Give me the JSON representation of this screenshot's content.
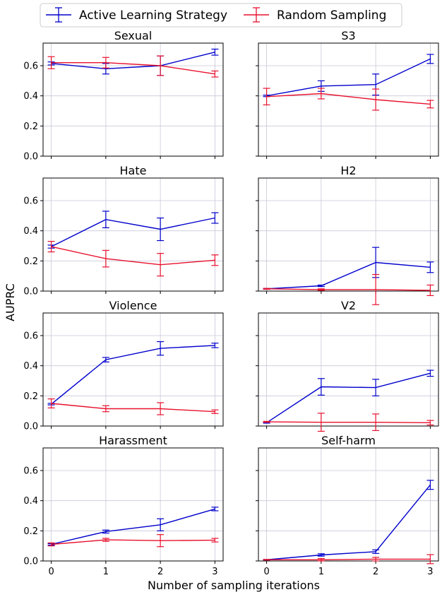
{
  "colors": {
    "active": "#0000cc",
    "random": "#e8112d",
    "grid": "#c8c8d8"
  },
  "legend": {
    "items": [
      {
        "label": "Active Learning Strategy",
        "color": "#0000cc"
      },
      {
        "label": "Random Sampling",
        "color": "#e8112d"
      }
    ]
  },
  "axes": {
    "xlabel": "Number of sampling iterations",
    "ylabel": "AUPRC",
    "x_ticks": [
      "0",
      "1",
      "2",
      "3"
    ],
    "y_ticks": [
      "0.0",
      "0.2",
      "0.4",
      "0.6"
    ]
  },
  "chart_data": [
    {
      "type": "line",
      "title": "Sexual",
      "x": [
        0,
        1,
        2,
        3
      ],
      "xlim": [
        -0.15,
        3.15
      ],
      "ylim": [
        0,
        0.75
      ],
      "series": [
        {
          "name": "Active Learning Strategy",
          "values": [
            0.615,
            0.58,
            0.6,
            0.69
          ],
          "errors": [
            0.01,
            0.035,
            0.065,
            0.02
          ]
        },
        {
          "name": "Random Sampling",
          "values": [
            0.62,
            0.62,
            0.6,
            0.545
          ],
          "errors": [
            0.04,
            0.035,
            0.065,
            0.02
          ]
        }
      ]
    },
    {
      "type": "line",
      "title": "S3",
      "x": [
        0,
        1,
        2,
        3
      ],
      "xlim": [
        -0.15,
        3.15
      ],
      "ylim": [
        0,
        0.75
      ],
      "series": [
        {
          "name": "Active Learning Strategy",
          "values": [
            0.4,
            0.465,
            0.475,
            0.645
          ],
          "errors": [
            0.005,
            0.035,
            0.07,
            0.03
          ]
        },
        {
          "name": "Random Sampling",
          "values": [
            0.395,
            0.415,
            0.375,
            0.345
          ],
          "errors": [
            0.055,
            0.035,
            0.07,
            0.025
          ]
        }
      ]
    },
    {
      "type": "line",
      "title": "Hate",
      "x": [
        0,
        1,
        2,
        3
      ],
      "xlim": [
        -0.15,
        3.15
      ],
      "ylim": [
        0,
        0.75
      ],
      "series": [
        {
          "name": "Active Learning Strategy",
          "values": [
            0.295,
            0.475,
            0.41,
            0.485
          ],
          "errors": [
            0.01,
            0.055,
            0.075,
            0.035
          ]
        },
        {
          "name": "Random Sampling",
          "values": [
            0.295,
            0.215,
            0.175,
            0.205
          ],
          "errors": [
            0.035,
            0.055,
            0.075,
            0.035
          ]
        }
      ]
    },
    {
      "type": "line",
      "title": "H2",
      "x": [
        0,
        1,
        2,
        3
      ],
      "xlim": [
        -0.15,
        3.15
      ],
      "ylim": [
        0,
        0.75
      ],
      "series": [
        {
          "name": "Active Learning Strategy",
          "values": [
            0.015,
            0.035,
            0.19,
            0.158
          ],
          "errors": [
            0.003,
            0.005,
            0.1,
            0.035
          ]
        },
        {
          "name": "Random Sampling",
          "values": [
            0.015,
            0.01,
            0.01,
            0.005
          ],
          "errors": [
            0.003,
            0.005,
            0.1,
            0.035
          ]
        }
      ]
    },
    {
      "type": "line",
      "title": "Violence",
      "x": [
        0,
        1,
        2,
        3
      ],
      "xlim": [
        -0.15,
        3.15
      ],
      "ylim": [
        0,
        0.75
      ],
      "series": [
        {
          "name": "Active Learning Strategy",
          "values": [
            0.145,
            0.44,
            0.515,
            0.535
          ],
          "errors": [
            0.005,
            0.015,
            0.045,
            0.015
          ]
        },
        {
          "name": "Random Sampling",
          "values": [
            0.15,
            0.115,
            0.115,
            0.095
          ],
          "errors": [
            0.03,
            0.02,
            0.04,
            0.012
          ]
        }
      ]
    },
    {
      "type": "line",
      "title": "V2",
      "x": [
        0,
        1,
        2,
        3
      ],
      "xlim": [
        -0.15,
        3.15
      ],
      "ylim": [
        0,
        0.75
      ],
      "series": [
        {
          "name": "Active Learning Strategy",
          "values": [
            0.022,
            0.26,
            0.255,
            0.35
          ],
          "errors": [
            0.003,
            0.055,
            0.055,
            0.02
          ]
        },
        {
          "name": "Random Sampling",
          "values": [
            0.028,
            0.025,
            0.025,
            0.022
          ],
          "errors": [
            0.003,
            0.06,
            0.055,
            0.015
          ]
        }
      ]
    },
    {
      "type": "line",
      "title": "Harassment",
      "x": [
        0,
        1,
        2,
        3
      ],
      "xlim": [
        -0.15,
        3.15
      ],
      "ylim": [
        0,
        0.75
      ],
      "series": [
        {
          "name": "Active Learning Strategy",
          "values": [
            0.11,
            0.195,
            0.24,
            0.345
          ],
          "errors": [
            0.005,
            0.01,
            0.04,
            0.012
          ]
        },
        {
          "name": "Random Sampling",
          "values": [
            0.11,
            0.14,
            0.135,
            0.138
          ],
          "errors": [
            0.01,
            0.01,
            0.04,
            0.012
          ]
        }
      ]
    },
    {
      "type": "line",
      "title": "Self-harm",
      "x": [
        0,
        1,
        2,
        3
      ],
      "xlim": [
        -0.15,
        3.15
      ],
      "ylim": [
        0,
        0.75
      ],
      "series": [
        {
          "name": "Active Learning Strategy",
          "values": [
            0.008,
            0.04,
            0.062,
            0.505
          ],
          "errors": [
            0.002,
            0.008,
            0.012,
            0.03
          ]
        },
        {
          "name": "Random Sampling",
          "values": [
            0.008,
            0.008,
            0.012,
            0.012
          ],
          "errors": [
            0.002,
            0.008,
            0.012,
            0.03
          ]
        }
      ]
    }
  ]
}
